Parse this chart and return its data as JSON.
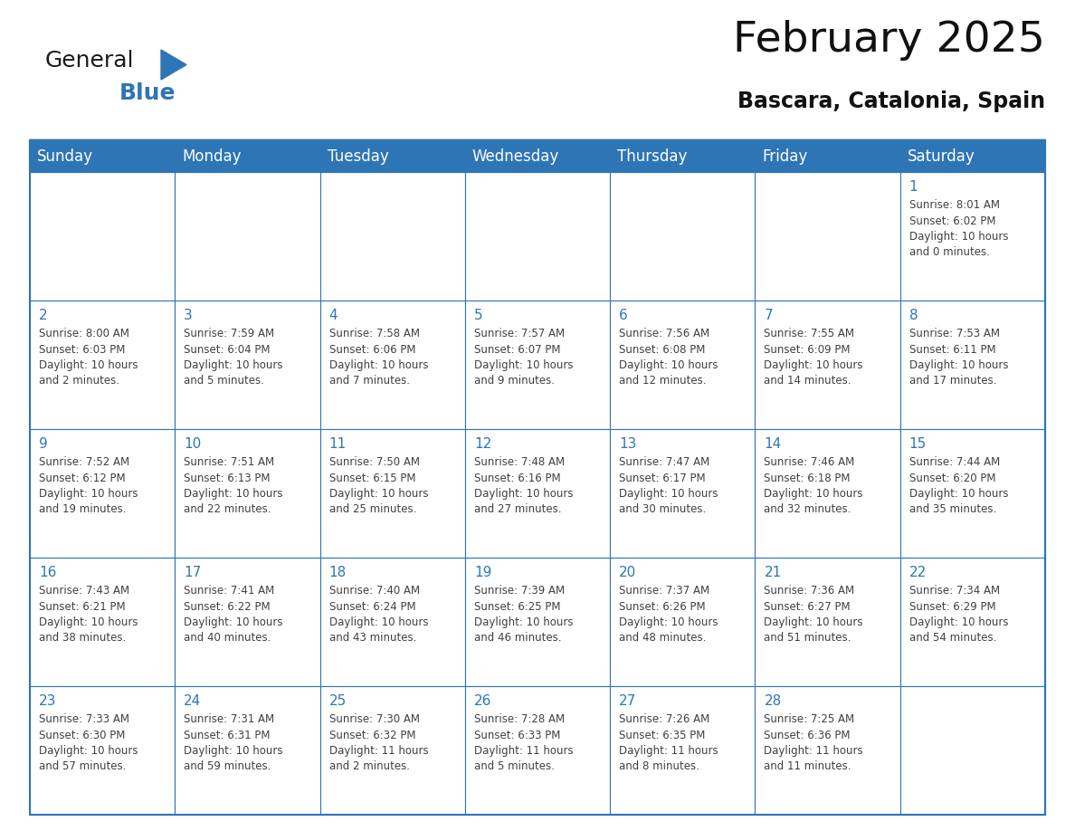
{
  "title": "February 2025",
  "subtitle": "Bascara, Catalonia, Spain",
  "header_bg_color": "#2E75B6",
  "header_text_color": "#FFFFFF",
  "border_color": "#2E75B6",
  "row_border_color": "#4472A8",
  "day_number_color": "#2E75B6",
  "cell_text_color": "#404040",
  "days_of_week": [
    "Sunday",
    "Monday",
    "Tuesday",
    "Wednesday",
    "Thursday",
    "Friday",
    "Saturday"
  ],
  "weeks": [
    [
      {
        "day": "",
        "info": ""
      },
      {
        "day": "",
        "info": ""
      },
      {
        "day": "",
        "info": ""
      },
      {
        "day": "",
        "info": ""
      },
      {
        "day": "",
        "info": ""
      },
      {
        "day": "",
        "info": ""
      },
      {
        "day": "1",
        "info": "Sunrise: 8:01 AM\nSunset: 6:02 PM\nDaylight: 10 hours\nand 0 minutes."
      }
    ],
    [
      {
        "day": "2",
        "info": "Sunrise: 8:00 AM\nSunset: 6:03 PM\nDaylight: 10 hours\nand 2 minutes."
      },
      {
        "day": "3",
        "info": "Sunrise: 7:59 AM\nSunset: 6:04 PM\nDaylight: 10 hours\nand 5 minutes."
      },
      {
        "day": "4",
        "info": "Sunrise: 7:58 AM\nSunset: 6:06 PM\nDaylight: 10 hours\nand 7 minutes."
      },
      {
        "day": "5",
        "info": "Sunrise: 7:57 AM\nSunset: 6:07 PM\nDaylight: 10 hours\nand 9 minutes."
      },
      {
        "day": "6",
        "info": "Sunrise: 7:56 AM\nSunset: 6:08 PM\nDaylight: 10 hours\nand 12 minutes."
      },
      {
        "day": "7",
        "info": "Sunrise: 7:55 AM\nSunset: 6:09 PM\nDaylight: 10 hours\nand 14 minutes."
      },
      {
        "day": "8",
        "info": "Sunrise: 7:53 AM\nSunset: 6:11 PM\nDaylight: 10 hours\nand 17 minutes."
      }
    ],
    [
      {
        "day": "9",
        "info": "Sunrise: 7:52 AM\nSunset: 6:12 PM\nDaylight: 10 hours\nand 19 minutes."
      },
      {
        "day": "10",
        "info": "Sunrise: 7:51 AM\nSunset: 6:13 PM\nDaylight: 10 hours\nand 22 minutes."
      },
      {
        "day": "11",
        "info": "Sunrise: 7:50 AM\nSunset: 6:15 PM\nDaylight: 10 hours\nand 25 minutes."
      },
      {
        "day": "12",
        "info": "Sunrise: 7:48 AM\nSunset: 6:16 PM\nDaylight: 10 hours\nand 27 minutes."
      },
      {
        "day": "13",
        "info": "Sunrise: 7:47 AM\nSunset: 6:17 PM\nDaylight: 10 hours\nand 30 minutes."
      },
      {
        "day": "14",
        "info": "Sunrise: 7:46 AM\nSunset: 6:18 PM\nDaylight: 10 hours\nand 32 minutes."
      },
      {
        "day": "15",
        "info": "Sunrise: 7:44 AM\nSunset: 6:20 PM\nDaylight: 10 hours\nand 35 minutes."
      }
    ],
    [
      {
        "day": "16",
        "info": "Sunrise: 7:43 AM\nSunset: 6:21 PM\nDaylight: 10 hours\nand 38 minutes."
      },
      {
        "day": "17",
        "info": "Sunrise: 7:41 AM\nSunset: 6:22 PM\nDaylight: 10 hours\nand 40 minutes."
      },
      {
        "day": "18",
        "info": "Sunrise: 7:40 AM\nSunset: 6:24 PM\nDaylight: 10 hours\nand 43 minutes."
      },
      {
        "day": "19",
        "info": "Sunrise: 7:39 AM\nSunset: 6:25 PM\nDaylight: 10 hours\nand 46 minutes."
      },
      {
        "day": "20",
        "info": "Sunrise: 7:37 AM\nSunset: 6:26 PM\nDaylight: 10 hours\nand 48 minutes."
      },
      {
        "day": "21",
        "info": "Sunrise: 7:36 AM\nSunset: 6:27 PM\nDaylight: 10 hours\nand 51 minutes."
      },
      {
        "day": "22",
        "info": "Sunrise: 7:34 AM\nSunset: 6:29 PM\nDaylight: 10 hours\nand 54 minutes."
      }
    ],
    [
      {
        "day": "23",
        "info": "Sunrise: 7:33 AM\nSunset: 6:30 PM\nDaylight: 10 hours\nand 57 minutes."
      },
      {
        "day": "24",
        "info": "Sunrise: 7:31 AM\nSunset: 6:31 PM\nDaylight: 10 hours\nand 59 minutes."
      },
      {
        "day": "25",
        "info": "Sunrise: 7:30 AM\nSunset: 6:32 PM\nDaylight: 11 hours\nand 2 minutes."
      },
      {
        "day": "26",
        "info": "Sunrise: 7:28 AM\nSunset: 6:33 PM\nDaylight: 11 hours\nand 5 minutes."
      },
      {
        "day": "27",
        "info": "Sunrise: 7:26 AM\nSunset: 6:35 PM\nDaylight: 11 hours\nand 8 minutes."
      },
      {
        "day": "28",
        "info": "Sunrise: 7:25 AM\nSunset: 6:36 PM\nDaylight: 11 hours\nand 11 minutes."
      },
      {
        "day": "",
        "info": ""
      }
    ]
  ],
  "logo_text_general": "General",
  "logo_text_blue": "Blue",
  "logo_triangle_color": "#2E75B6",
  "title_fontsize": 34,
  "subtitle_fontsize": 17,
  "header_fontsize": 12,
  "day_num_fontsize": 11,
  "cell_info_fontsize": 8.5
}
